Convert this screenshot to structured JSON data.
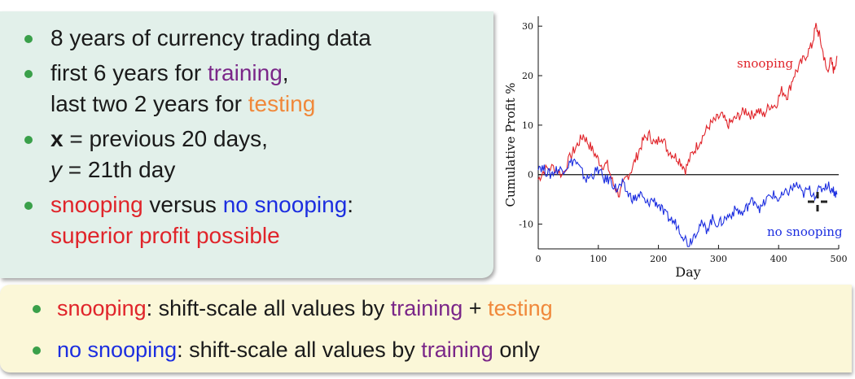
{
  "bullets": {
    "b1": "8 years of currency trading data",
    "b2_pre": "first 6 years for ",
    "b2_training": "training",
    "b2_comma": ",",
    "b2_line2_pre": "last two 2 years for ",
    "b2_testing": "testing",
    "b3_x": "x",
    "b3_rest": " = previous 20 days,",
    "b3_y": "y",
    "b3_line2_rest": " = 21th day",
    "b4_snooping": "snooping",
    "b4_versus": " versus ",
    "b4_nosnooping": "no snooping",
    "b4_colon": ":",
    "b4_line2": "superior profit possible"
  },
  "bottom": {
    "l1_snooping": "snooping",
    "l1_mid": ": shift-scale all values by ",
    "l1_training": "training",
    "l1_plus": " + ",
    "l1_testing": "testing",
    "l2_nosnooping": "no snooping",
    "l2_mid": ": shift-scale all values by ",
    "l2_training": "training",
    "l2_only": " only"
  },
  "colors": {
    "snooping": "#e0242a",
    "no_snooping": "#1c2ee0",
    "training": "#7a2688",
    "testing": "#f0883a",
    "bullet": "#3aa04a"
  },
  "chart_data": {
    "type": "line",
    "xlabel": "Day",
    "ylabel": "Cumulative Profit %",
    "xlim": [
      0,
      500
    ],
    "ylim": [
      -15,
      32
    ],
    "xticks": [
      0,
      100,
      200,
      300,
      400,
      500
    ],
    "yticks": [
      -10,
      0,
      10,
      20,
      30
    ],
    "zero_line": true,
    "series": [
      {
        "name": "snooping",
        "color": "#e0242a",
        "points": [
          [
            0,
            -1
          ],
          [
            10,
            1
          ],
          [
            25,
            1.5
          ],
          [
            40,
            0
          ],
          [
            55,
            4
          ],
          [
            65,
            6
          ],
          [
            75,
            8
          ],
          [
            85,
            6
          ],
          [
            95,
            4
          ],
          [
            105,
            2
          ],
          [
            115,
            2
          ],
          [
            125,
            -2
          ],
          [
            135,
            -4
          ],
          [
            145,
            -1
          ],
          [
            155,
            1
          ],
          [
            165,
            4
          ],
          [
            175,
            7
          ],
          [
            185,
            8
          ],
          [
            195,
            6
          ],
          [
            205,
            8
          ],
          [
            215,
            5
          ],
          [
            225,
            4
          ],
          [
            235,
            3
          ],
          [
            245,
            1
          ],
          [
            255,
            4
          ],
          [
            265,
            6
          ],
          [
            275,
            8
          ],
          [
            285,
            10
          ],
          [
            295,
            11
          ],
          [
            305,
            12
          ],
          [
            315,
            10
          ],
          [
            325,
            11
          ],
          [
            335,
            12
          ],
          [
            345,
            13
          ],
          [
            355,
            12
          ],
          [
            365,
            13
          ],
          [
            375,
            12
          ],
          [
            385,
            14
          ],
          [
            395,
            14
          ],
          [
            405,
            17
          ],
          [
            415,
            16
          ],
          [
            425,
            20
          ],
          [
            435,
            22
          ],
          [
            445,
            24
          ],
          [
            455,
            26
          ],
          [
            462,
            30
          ],
          [
            468,
            28
          ],
          [
            475,
            24
          ],
          [
            480,
            21
          ],
          [
            487,
            23
          ],
          [
            492,
            21
          ],
          [
            497,
            24
          ]
        ]
      },
      {
        "name": "no snooping",
        "color": "#1c2ee0",
        "points": [
          [
            0,
            2
          ],
          [
            10,
            1
          ],
          [
            20,
            0
          ],
          [
            30,
            1
          ],
          [
            40,
            1
          ],
          [
            50,
            2
          ],
          [
            60,
            3
          ],
          [
            70,
            1
          ],
          [
            80,
            -1
          ],
          [
            90,
            0
          ],
          [
            100,
            1
          ],
          [
            110,
            -1
          ],
          [
            120,
            -1
          ],
          [
            130,
            -3
          ],
          [
            140,
            -2
          ],
          [
            150,
            -4
          ],
          [
            160,
            -5
          ],
          [
            170,
            -4
          ],
          [
            180,
            -6
          ],
          [
            190,
            -5
          ],
          [
            200,
            -6
          ],
          [
            210,
            -8
          ],
          [
            220,
            -9
          ],
          [
            230,
            -10
          ],
          [
            240,
            -12
          ],
          [
            250,
            -14
          ],
          [
            260,
            -12
          ],
          [
            270,
            -10
          ],
          [
            280,
            -11
          ],
          [
            290,
            -9
          ],
          [
            300,
            -10
          ],
          [
            310,
            -9
          ],
          [
            320,
            -8
          ],
          [
            330,
            -7
          ],
          [
            340,
            -8
          ],
          [
            350,
            -6
          ],
          [
            360,
            -5
          ],
          [
            370,
            -7
          ],
          [
            380,
            -5
          ],
          [
            390,
            -4
          ],
          [
            400,
            -5
          ],
          [
            410,
            -4
          ],
          [
            420,
            -3
          ],
          [
            430,
            -2
          ],
          [
            440,
            -4
          ],
          [
            450,
            -3
          ],
          [
            460,
            -4
          ],
          [
            470,
            -3
          ],
          [
            480,
            -2
          ],
          [
            490,
            -3
          ],
          [
            497,
            -4
          ]
        ]
      }
    ],
    "annotations": [
      {
        "text": "snooping",
        "color": "#e0242a"
      },
      {
        "text": "no snooping",
        "color": "#1c2ee0"
      }
    ]
  }
}
